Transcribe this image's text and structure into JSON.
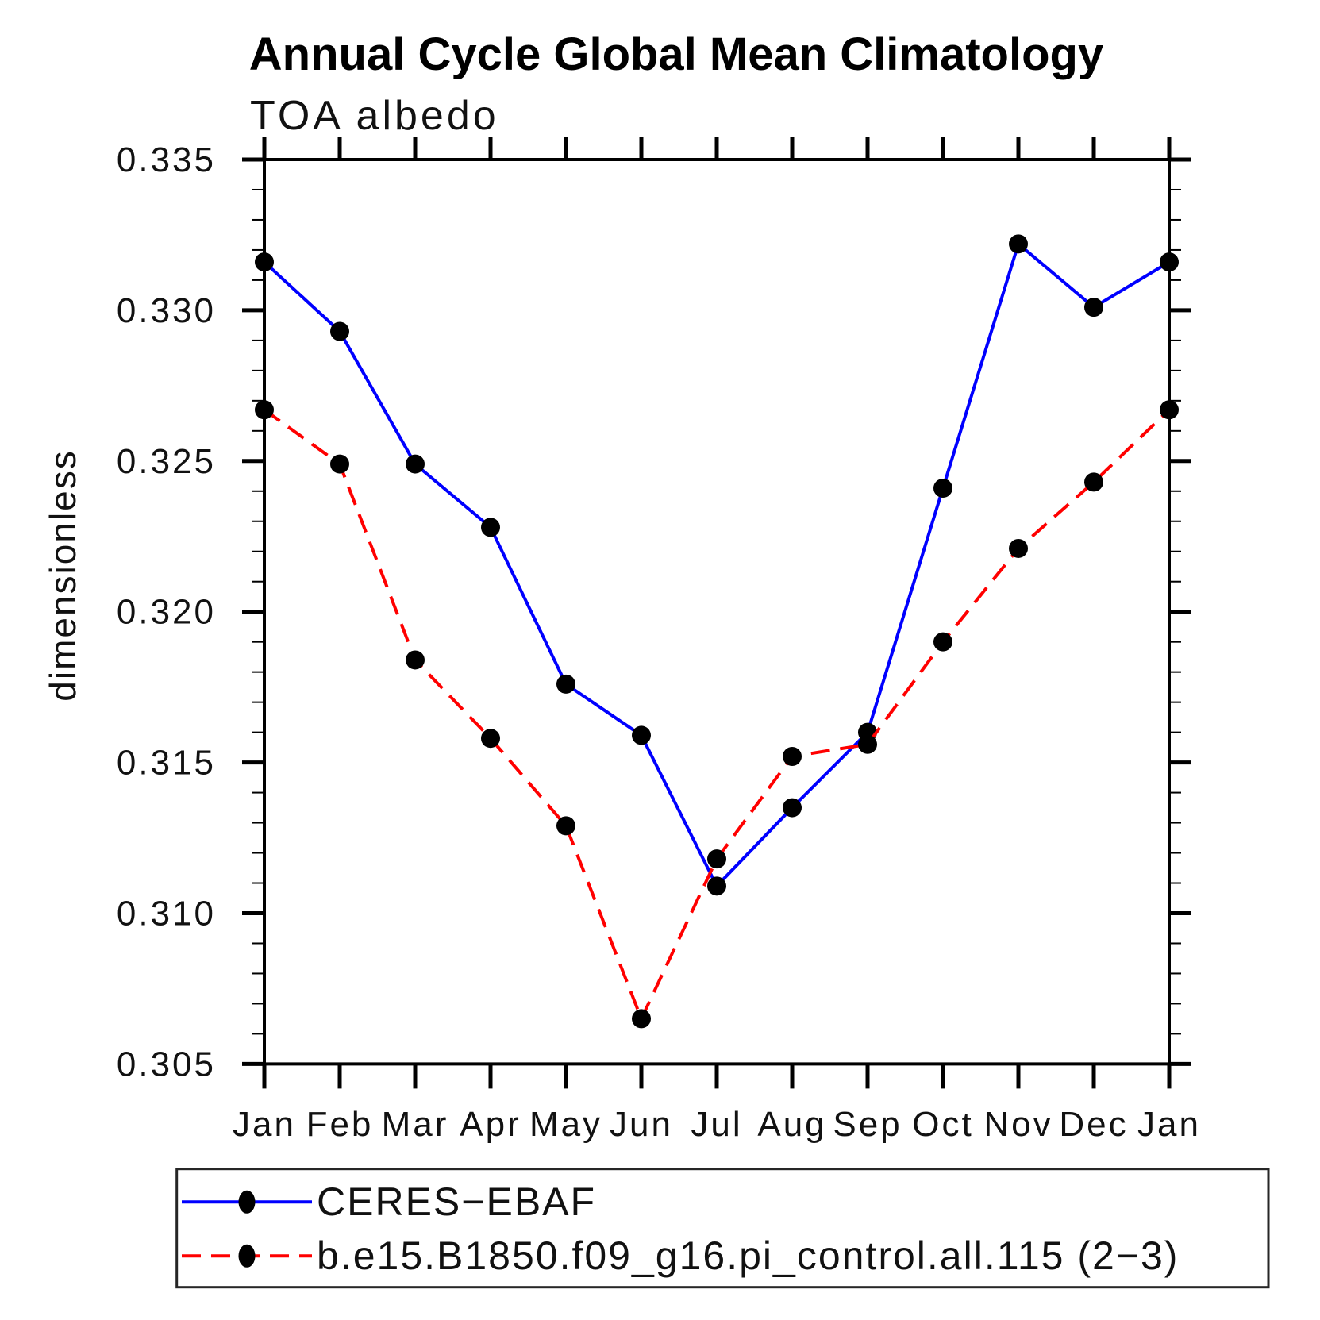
{
  "chart_data": {
    "type": "line",
    "title": "Annual Cycle Global Mean Climatology",
    "subtitle": "TOA albedo",
    "ylabel": "dimensionless",
    "ylim": [
      0.305,
      0.335
    ],
    "ytick_step": 0.005,
    "ytick_minor_step": 0.001,
    "ytick_labels": [
      "0.305",
      "0.310",
      "0.315",
      "0.320",
      "0.325",
      "0.330",
      "0.335"
    ],
    "categories": [
      "Jan",
      "Feb",
      "Mar",
      "Apr",
      "May",
      "Jun",
      "Jul",
      "Aug",
      "Sep",
      "Oct",
      "Nov",
      "Dec",
      "Jan"
    ],
    "grid": false,
    "legend_position": "bottom-left",
    "frame_color": "#000000",
    "marker_color": "#000000",
    "series": [
      {
        "name": "CERES−EBAF",
        "color": "#0000ff",
        "style": "solid",
        "marker": "circle",
        "values": [
          0.3316,
          0.3293,
          0.3249,
          0.3228,
          0.3176,
          0.3159,
          0.3109,
          0.3135,
          0.316,
          0.3241,
          0.3322,
          0.3301,
          0.3316
        ]
      },
      {
        "name": "b.e15.B1850.f09_g16.pi_control.all.115 (2−3)",
        "color": "#ff0000",
        "style": "dashed",
        "marker": "circle",
        "values": [
          0.3267,
          0.3249,
          0.3184,
          0.3158,
          0.3129,
          0.3065,
          0.3118,
          0.3152,
          0.3156,
          0.319,
          0.3221,
          0.3243,
          0.3267
        ]
      }
    ]
  }
}
